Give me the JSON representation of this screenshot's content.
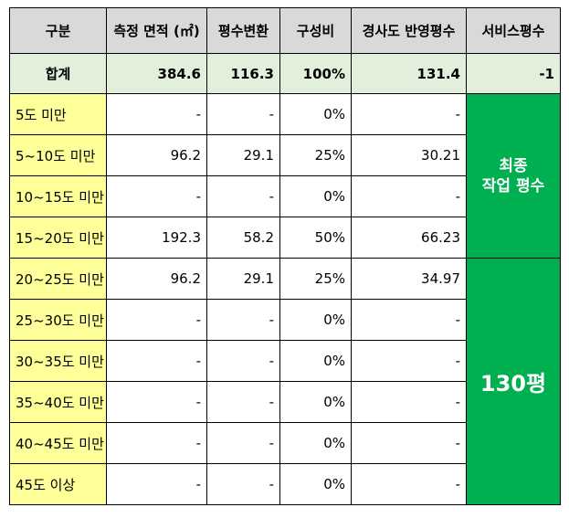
{
  "headers": [
    "구분",
    "측정 면적 (㎡)",
    "평수변환",
    "구성비",
    "경사도 반영평수",
    "서비스평수"
  ],
  "total": {
    "label": "합계",
    "area": "384.6",
    "pyeong": "116.3",
    "ratio": "100%",
    "slope_pyeong": "131.4",
    "service": "-1"
  },
  "rows": [
    {
      "label": "5도 미만",
      "area": "-",
      "pyeong": "-",
      "ratio": "0%",
      "slope_pyeong": "-"
    },
    {
      "label": "5~10도 미만",
      "area": "96.2",
      "pyeong": "29.1",
      "ratio": "25%",
      "slope_pyeong": "30.21"
    },
    {
      "label": "10~15도 미만",
      "area": "-",
      "pyeong": "-",
      "ratio": "0%",
      "slope_pyeong": "-"
    },
    {
      "label": "15~20도 미만",
      "area": "192.3",
      "pyeong": "58.2",
      "ratio": "50%",
      "slope_pyeong": "66.23"
    },
    {
      "label": "20~25도 미만",
      "area": "96.2",
      "pyeong": "29.1",
      "ratio": "25%",
      "slope_pyeong": "34.97"
    },
    {
      "label": "25~30도 미만",
      "area": "-",
      "pyeong": "-",
      "ratio": "0%",
      "slope_pyeong": "-"
    },
    {
      "label": "30~35도 미만",
      "area": "-",
      "pyeong": "-",
      "ratio": "0%",
      "slope_pyeong": "-"
    },
    {
      "label": "35~40도 미만",
      "area": "-",
      "pyeong": "-",
      "ratio": "0%",
      "slope_pyeong": "-"
    },
    {
      "label": "40~45도 미만",
      "area": "-",
      "pyeong": "-",
      "ratio": "0%",
      "slope_pyeong": "-"
    },
    {
      "label": "45도 이상",
      "area": "-",
      "pyeong": "-",
      "ratio": "0%",
      "slope_pyeong": "-"
    }
  ],
  "merged": {
    "final_label_line1": "최종",
    "final_label_line2": "작업 평수",
    "final_value": "130평"
  },
  "colors": {
    "header_bg": "#d9d9d9",
    "total_bg": "#e2efda",
    "label_bg": "#ffff99",
    "merged_bg": "#00b050",
    "negative": "#ff0000"
  }
}
